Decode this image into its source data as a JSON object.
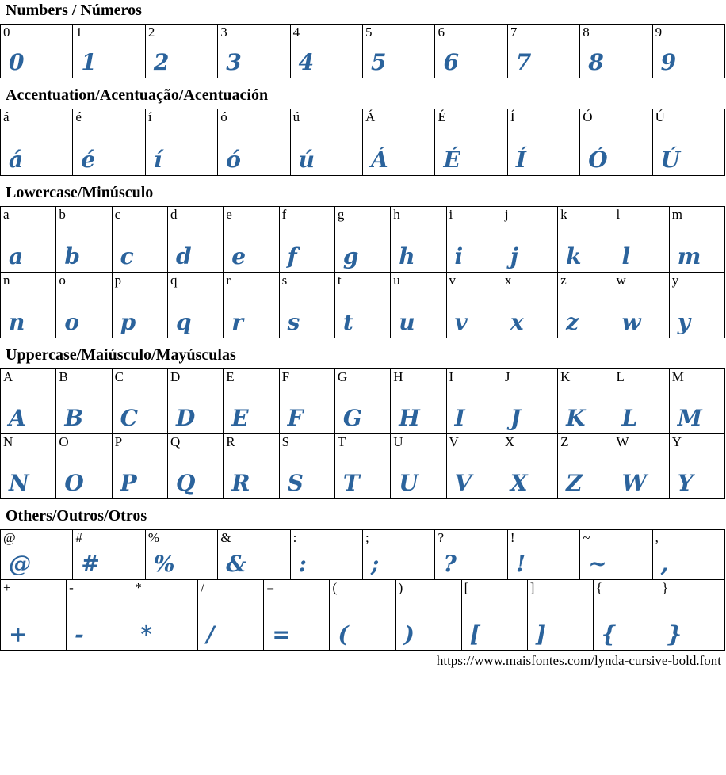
{
  "accent_color": "#2b639c",
  "label_color": "#000000",
  "border_color": "#000000",
  "sections": [
    {
      "title": "Numbers / Números",
      "rows": [
        [
          "0",
          "1",
          "2",
          "3",
          "4",
          "5",
          "6",
          "7",
          "8",
          "9"
        ]
      ]
    },
    {
      "title": "Accentuation/Acentuação/Acentuación",
      "rows": [
        [
          "á",
          "é",
          "í",
          "ó",
          "ú",
          "Á",
          "É",
          "Í",
          "Ó",
          "Ú"
        ]
      ]
    },
    {
      "title": "Lowercase/Minúsculo",
      "rows": [
        [
          "a",
          "b",
          "c",
          "d",
          "e",
          "f",
          "g",
          "h",
          "i",
          "j",
          "k",
          "l",
          "m"
        ],
        [
          "n",
          "o",
          "p",
          "q",
          "r",
          "s",
          "t",
          "u",
          "v",
          "x",
          "z",
          "w",
          "y"
        ]
      ]
    },
    {
      "title": "Uppercase/Maiúsculo/Mayúsculas",
      "rows": [
        [
          "A",
          "B",
          "C",
          "D",
          "E",
          "F",
          "G",
          "H",
          "I",
          "J",
          "K",
          "L",
          "M"
        ],
        [
          "N",
          "O",
          "P",
          "Q",
          "R",
          "S",
          "T",
          "U",
          "V",
          "X",
          "Z",
          "W",
          "Y"
        ]
      ]
    },
    {
      "title": "Others/Outros/Otros",
      "rows": [
        [
          "@",
          "#",
          "%",
          "&",
          ":",
          ";",
          "?",
          "!",
          "~",
          ","
        ],
        [
          "+",
          "-",
          "*",
          "/",
          "=",
          "(",
          ")",
          "[",
          "]",
          "{",
          "}"
        ]
      ]
    }
  ],
  "footer": {
    "url": "https://www.maisfontes.com/lynda-cursive-bold.font"
  }
}
